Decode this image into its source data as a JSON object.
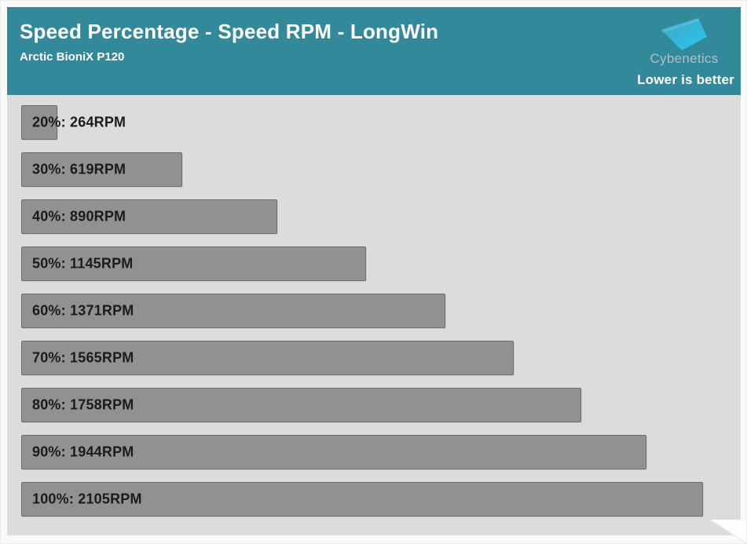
{
  "header": {
    "title": "Speed Percentage - Speed RPM - LongWin",
    "subtitle": "Arctic BioniX P120",
    "brand": "Cybenetics",
    "note": "Lower is better",
    "bg_color": "#32899A"
  },
  "chart_data": {
    "type": "bar",
    "orientation": "horizontal",
    "title": "Speed Percentage - Speed RPM - LongWin",
    "subtitle": "Arctic BioniX P120",
    "annotation": "Lower is better",
    "categories": [
      "20%",
      "30%",
      "40%",
      "50%",
      "60%",
      "70%",
      "80%",
      "90%",
      "100%"
    ],
    "values": [
      264,
      619,
      890,
      1145,
      1371,
      1565,
      1758,
      1944,
      2105
    ],
    "unit": "RPM",
    "label_format": "{category}: {value}{unit}",
    "xlim": [
      161,
      2105
    ],
    "grid": false,
    "legend": false,
    "plot_bg": "#DCDCDC",
    "bar_color": "#919191",
    "bar_border_color": "#6E6E6E",
    "label_color": "#1B1B1B"
  }
}
